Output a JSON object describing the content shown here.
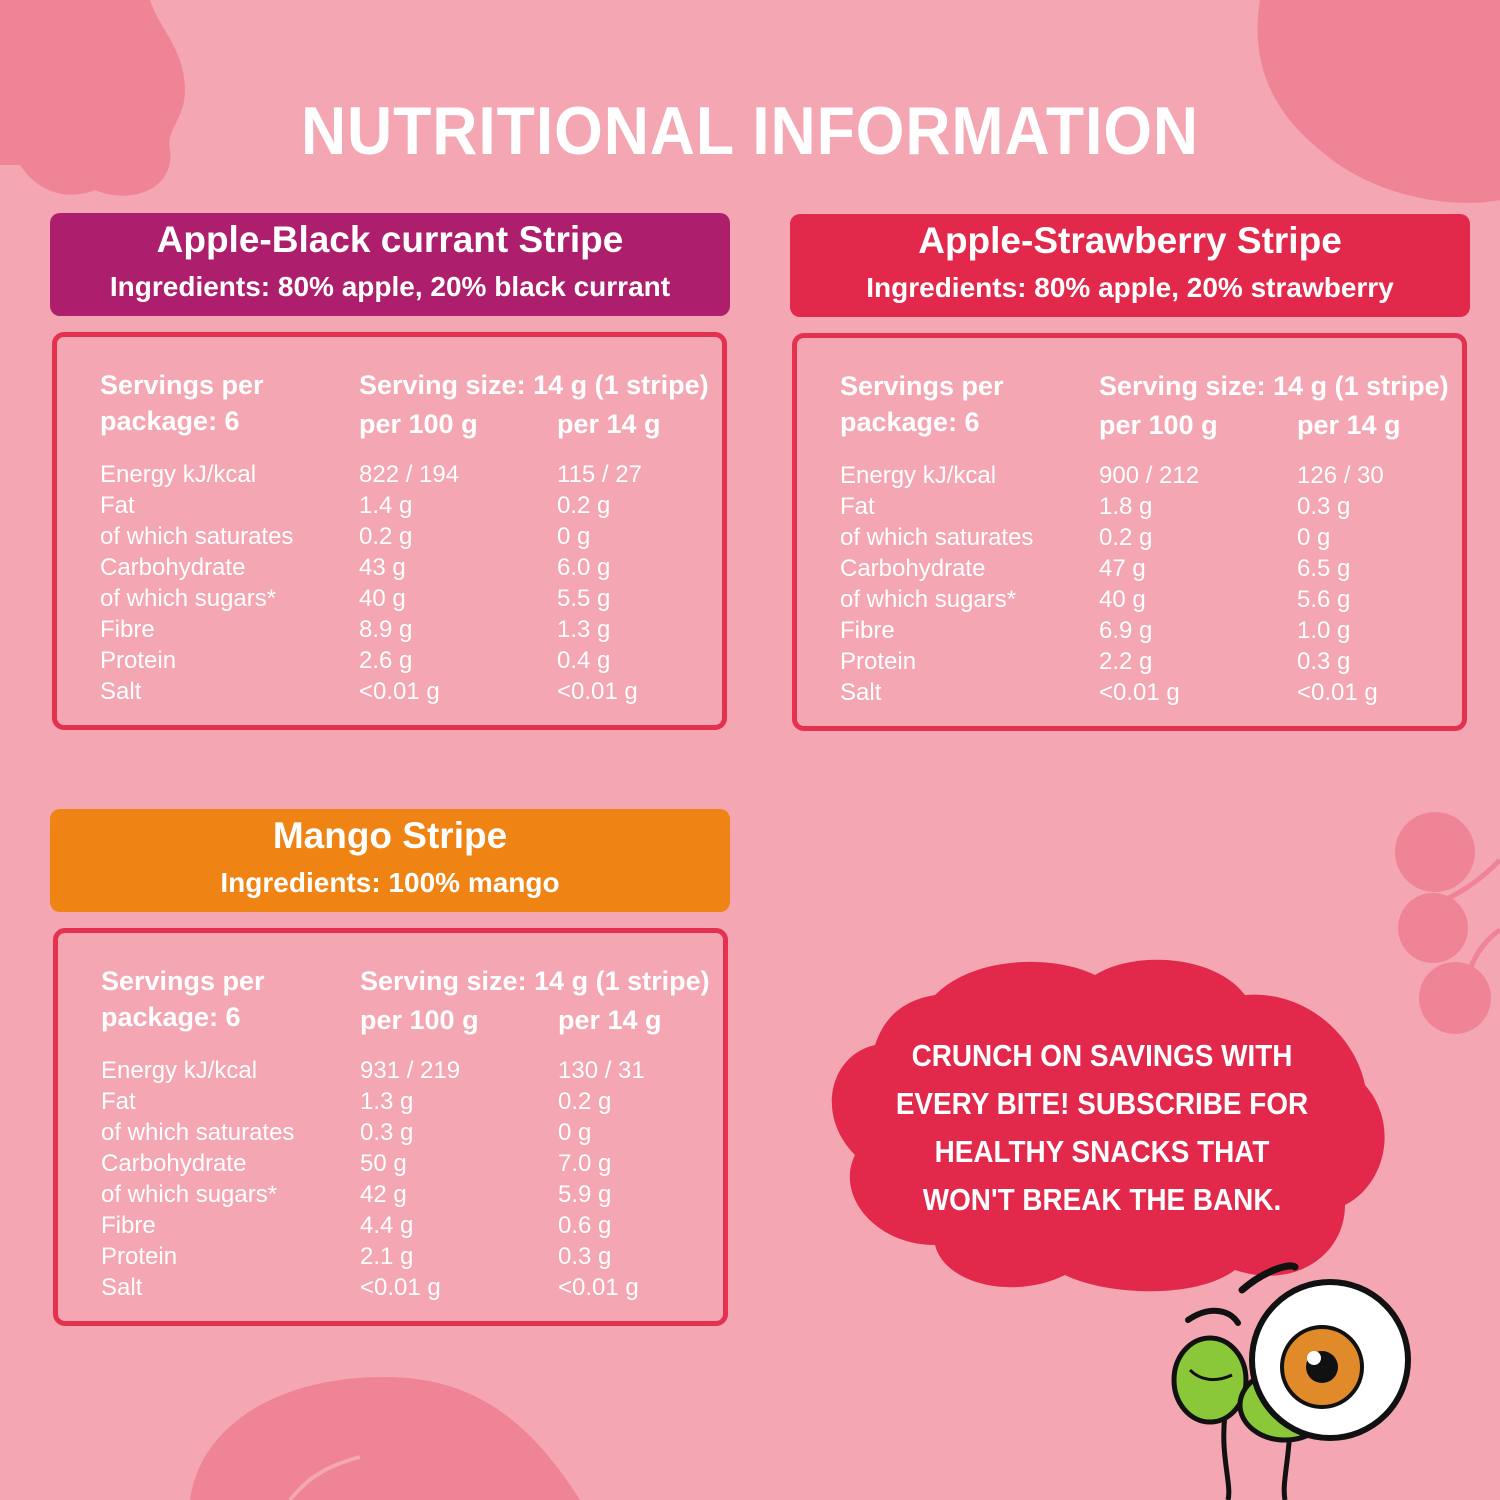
{
  "title": "NUTRITIONAL INFORMATION",
  "colors": {
    "background": "#f4a6b3",
    "blackcurrant": "#ad1f6c",
    "strawberry": "#e3294b",
    "mango": "#ef8313",
    "border": "#e3314f"
  },
  "products": [
    {
      "name": "Apple-Black currant Stripe",
      "ingredients": "Ingredients: 80% apple, 20% black currant",
      "servings": "Servings per package: 6",
      "serving_size": "Serving size: 14 g (1 stripe)",
      "col_100": "per 100 g",
      "col_14": "per 14 g",
      "rows": [
        {
          "name": "Energy kJ/kcal",
          "per100": "822 / 194",
          "per14": "115 / 27"
        },
        {
          "name": "Fat",
          "per100": "1.4 g",
          "per14": "0.2 g"
        },
        {
          "name": "of which saturates",
          "per100": "0.2 g",
          "per14": "0 g"
        },
        {
          "name": "Carbohydrate",
          "per100": "43 g",
          "per14": "6.0 g"
        },
        {
          "name": "of which sugars*",
          "per100": "40 g",
          "per14": "5.5 g"
        },
        {
          "name": "Fibre",
          "per100": "8.9 g",
          "per14": "1.3 g"
        },
        {
          "name": "Protein",
          "per100": "2.6 g",
          "per14": "0.4 g"
        },
        {
          "name": "Salt",
          "per100": "<0.01 g",
          "per14": "<0.01 g"
        }
      ]
    },
    {
      "name": "Apple-Strawberry Stripe",
      "ingredients": "Ingredients: 80% apple, 20% strawberry",
      "servings": "Servings per package: 6",
      "serving_size": "Serving size: 14 g (1 stripe)",
      "col_100": "per 100 g",
      "col_14": "per 14 g",
      "rows": [
        {
          "name": "Energy kJ/kcal",
          "per100": "900 / 212",
          "per14": "126 / 30"
        },
        {
          "name": "Fat",
          "per100": "1.8 g",
          "per14": "0.3 g"
        },
        {
          "name": "of which saturates",
          "per100": "0.2 g",
          "per14": "0 g"
        },
        {
          "name": "Carbohydrate",
          "per100": "47 g",
          "per14": "6.5 g"
        },
        {
          "name": "of which sugars*",
          "per100": "40 g",
          "per14": "5.6 g"
        },
        {
          "name": "Fibre",
          "per100": "6.9 g",
          "per14": "1.0 g"
        },
        {
          "name": "Protein",
          "per100": "2.2 g",
          "per14": "0.3 g"
        },
        {
          "name": "Salt",
          "per100": "<0.01 g",
          "per14": "<0.01 g"
        }
      ]
    },
    {
      "name": "Mango Stripe",
      "ingredients": "Ingredients: 100% mango",
      "servings": "Servings per package: 6",
      "serving_size": "Serving size: 14 g (1 stripe)",
      "col_100": "per 100 g",
      "col_14": "per 14 g",
      "rows": [
        {
          "name": "Energy kJ/kcal",
          "per100": "931 / 219",
          "per14": "130 / 31"
        },
        {
          "name": "Fat",
          "per100": "1.3 g",
          "per14": "0.2 g"
        },
        {
          "name": "of which saturates",
          "per100": "0.3 g",
          "per14": "0 g"
        },
        {
          "name": "Carbohydrate",
          "per100": "50 g",
          "per14": "7.0 g"
        },
        {
          "name": "of which sugars*",
          "per100": "42 g",
          "per14": "5.9 g"
        },
        {
          "name": "Fibre",
          "per100": "4.4 g",
          "per14": "0.6 g"
        },
        {
          "name": "Protein",
          "per100": "2.1 g",
          "per14": "0.3 g"
        },
        {
          "name": "Salt",
          "per100": "<0.01 g",
          "per14": "<0.01 g"
        }
      ]
    }
  ],
  "promo": "CRUNCH ON SAVINGS WITH EVERY BITE! SUBSCRIBE FOR HEALTHY SNACKS THAT WON'T BREAK THE BANK.",
  "icons": [
    "berry-leaf-icon",
    "blob-decoration-icon",
    "berry-branch-icon",
    "eyeball-mascot-icon",
    "leaf-decoration-icon"
  ]
}
